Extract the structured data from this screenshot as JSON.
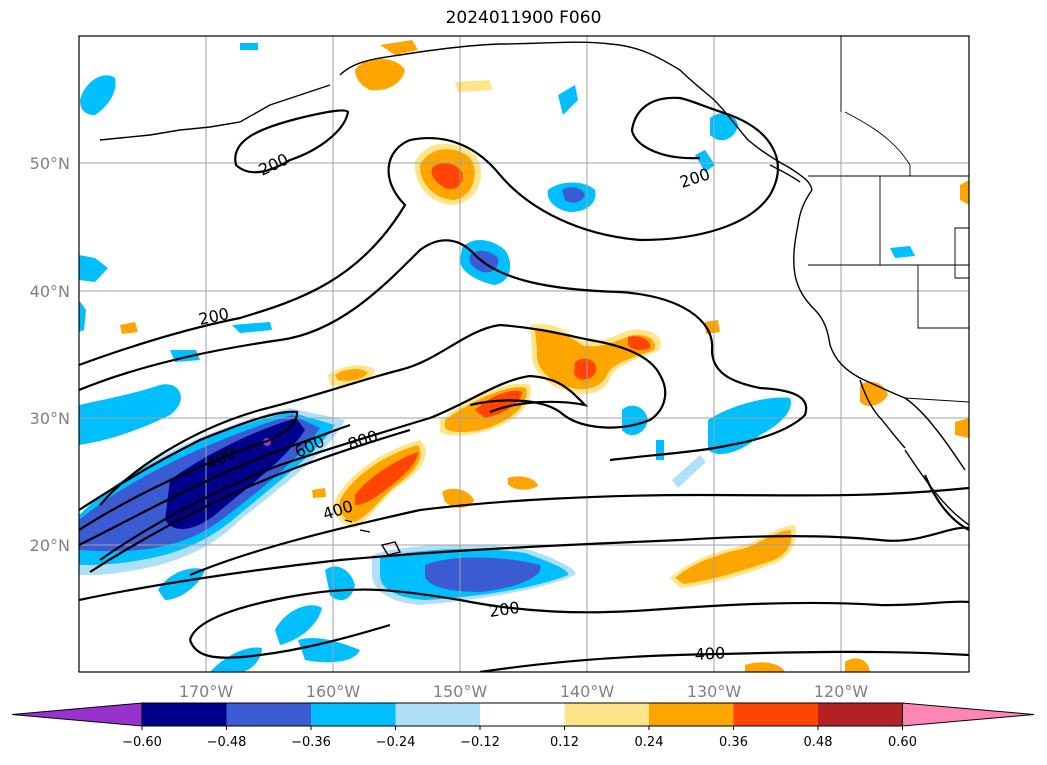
{
  "title": "2024011900 F060",
  "lat_labels": [
    "50°N",
    "40°N",
    "30°N",
    "20°N"
  ],
  "lon_labels": [
    "170°W",
    "160°W",
    "150°W",
    "140°W",
    "130°W",
    "120°W"
  ],
  "contour_labels": [
    "200",
    "200",
    "200",
    "200",
    "400",
    "400",
    "400",
    "600",
    "800"
  ],
  "colorbar": {
    "ticks": [
      "−0.60",
      "−0.48",
      "−0.36",
      "−0.24",
      "−0.12",
      "0.12",
      "0.24",
      "0.36",
      "0.48",
      "0.60"
    ],
    "colors": [
      "#9932cc",
      "#00008b",
      "#3a5bd2",
      "#00bfff",
      "#afe0f8",
      "#ffffff",
      "#ffe58a",
      "#ffa500",
      "#ff4500",
      "#b22222",
      "#ff86b4"
    ]
  }
}
